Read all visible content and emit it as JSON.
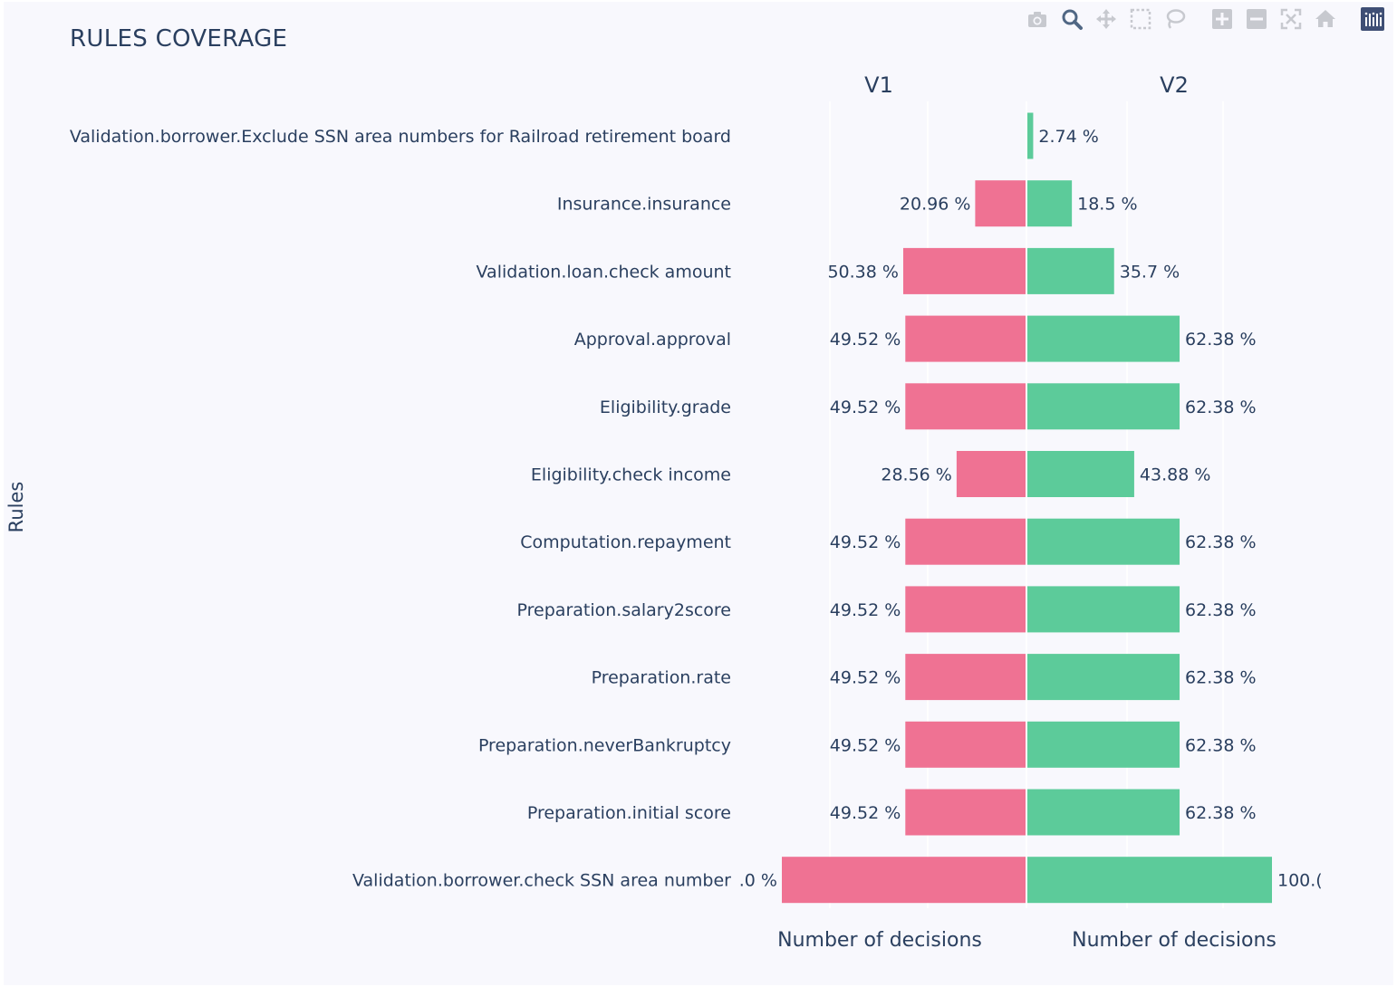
{
  "title": "RULES COVERAGE",
  "yaxis_title": "Rules",
  "modebar": {
    "icons": [
      "camera-icon",
      "zoom-icon",
      "pan-icon",
      "box-select-icon",
      "lasso-icon",
      "zoom-in-icon",
      "zoom-out-icon",
      "autoscale-icon",
      "reset-axes-icon",
      "plotly-logo-icon"
    ]
  },
  "colors": {
    "v1": "#ef7293",
    "v2": "#5ccb9a",
    "text": "#2a3f5f",
    "background": "#f8f8fd",
    "grid": "#ffffff"
  },
  "chart_data": {
    "type": "bar",
    "orientation": "horizontal",
    "layout": "back-to-back",
    "title": "RULES COVERAGE",
    "ylabel": "Rules",
    "categories": [
      "Validation.borrower.Exclude SSN area numbers for Railroad retirement board",
      "Insurance.insurance",
      "Validation.loan.check amount",
      "Approval.approval",
      "Eligibility.grade",
      "Eligibility.check income",
      "Computation.repayment",
      "Preparation.salary2score",
      "Preparation.rate",
      "Preparation.neverBankruptcy",
      "Preparation.initial score",
      "Validation.borrower.check SSN area number"
    ],
    "series": [
      {
        "name": "V1",
        "xlabel": "Number of decisions",
        "values": [
          0,
          20.96,
          50.38,
          49.52,
          49.52,
          28.56,
          49.52,
          49.52,
          49.52,
          49.52,
          49.52,
          100.0
        ],
        "labels": [
          "",
          "20.96 %",
          "50.38 %",
          "49.52 %",
          "49.52 %",
          "28.56 %",
          "49.52 %",
          "49.52 %",
          "49.52 %",
          "49.52 %",
          "49.52 %",
          ".0 %"
        ]
      },
      {
        "name": "V2",
        "xlabel": "Number of decisions",
        "values": [
          2.74,
          18.5,
          35.7,
          62.38,
          62.38,
          43.88,
          62.38,
          62.38,
          62.38,
          62.38,
          62.38,
          100.0
        ],
        "labels": [
          "2.74 %",
          "18.5 %",
          "35.7 %",
          "62.38 %",
          "62.38 %",
          "43.88 %",
          "62.38 %",
          "62.38 %",
          "62.38 %",
          "62.38 %",
          "62.38 %",
          "100.("
        ]
      }
    ],
    "grid": true,
    "legend": "none"
  }
}
